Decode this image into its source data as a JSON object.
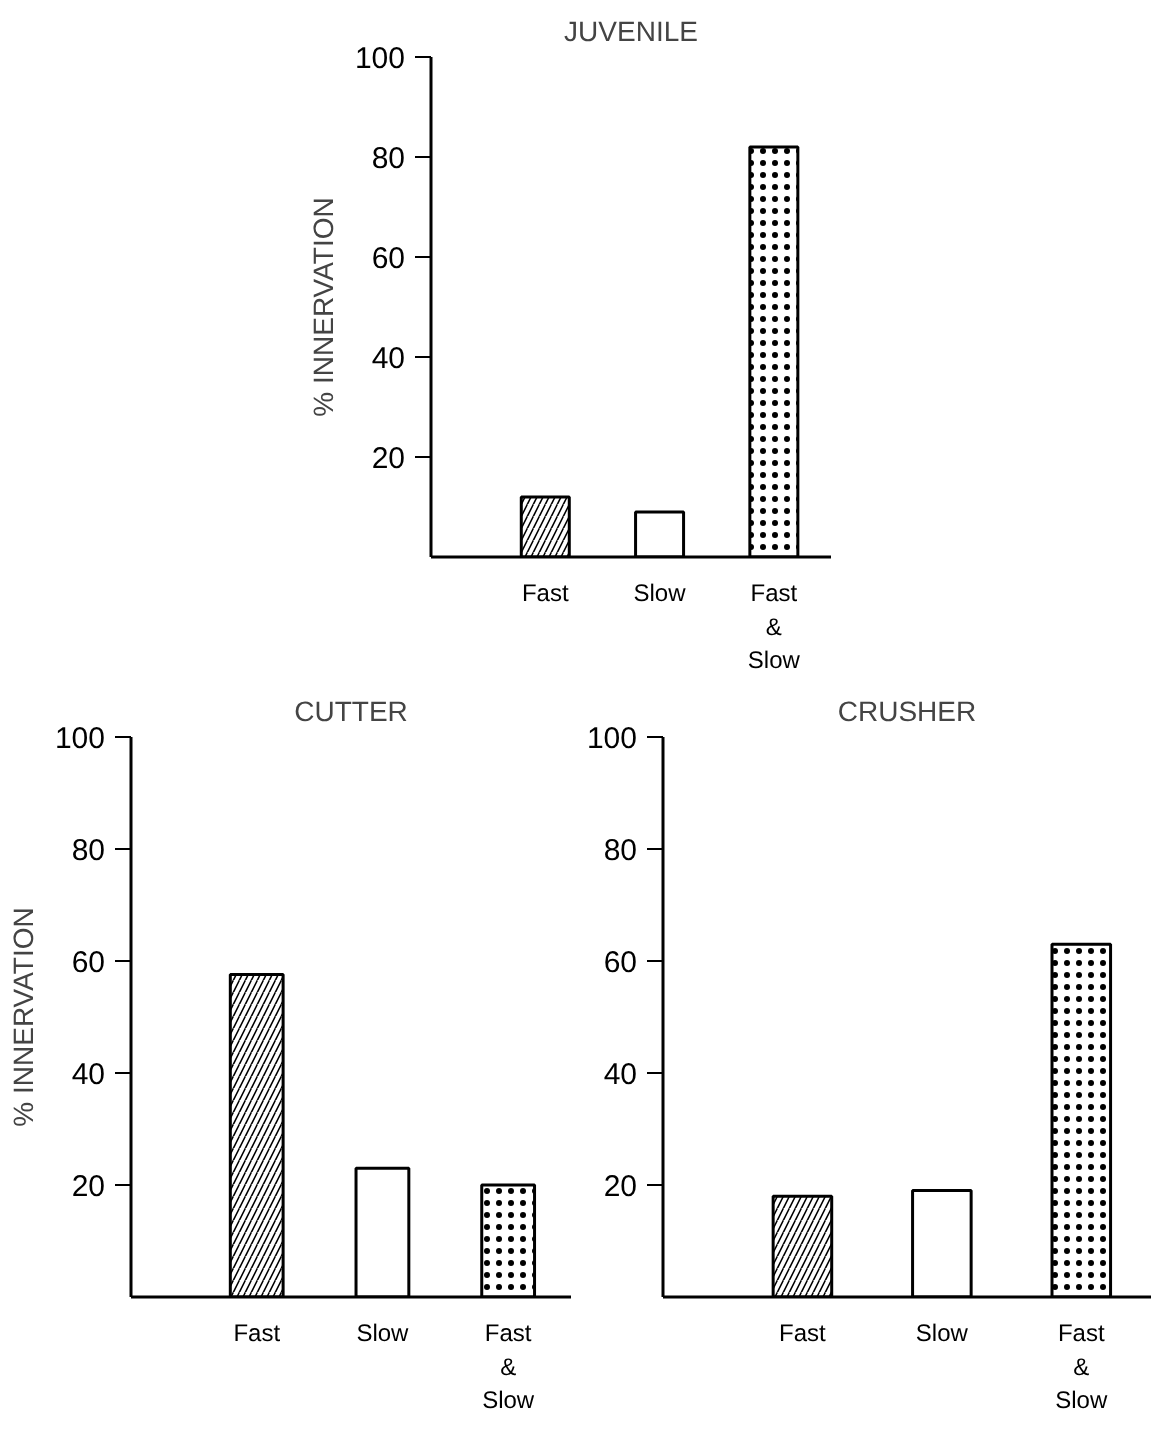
{
  "chart_data": [
    {
      "type": "bar",
      "title": "JUVENILE",
      "ylabel": "% INNERVATION",
      "categories": [
        "Fast",
        "Slow",
        "Fast\n&\nSlow"
      ],
      "colors": [
        "#ffffff",
        "#ffffff",
        "#ffffff"
      ],
      "values": [
        12,
        9,
        82
      ],
      "ylim": [
        0,
        100
      ],
      "yticks": [
        20,
        40,
        60,
        80,
        100
      ],
      "grid": false
    },
    {
      "type": "bar",
      "title": "CUTTER",
      "ylabel": "% INNERVATION",
      "categories": [
        "Fast",
        "Slow",
        "Fast\n&\nSlow"
      ],
      "colors": [
        "#ffffff",
        "#ffffff",
        "#ffffff"
      ],
      "values": [
        57.6,
        23,
        20
      ],
      "ylim": [
        0,
        100
      ],
      "yticks": [
        20,
        40,
        60,
        80,
        100
      ],
      "grid": false
    },
    {
      "type": "bar",
      "title": "CRUSHER",
      "categories": [
        "Fast",
        "Slow",
        "Fast\n&\nSlow"
      ],
      "colors": [
        "#ffffff",
        "#ffffff",
        "#ffffff"
      ],
      "values": [
        18,
        19,
        63
      ],
      "ylim": [
        0,
        100
      ],
      "yticks": [
        20,
        40,
        60,
        80,
        100
      ],
      "grid": false
    }
  ]
}
